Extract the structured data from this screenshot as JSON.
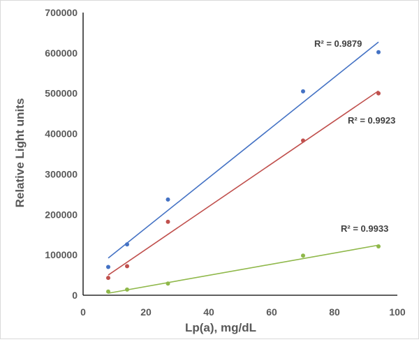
{
  "chart_data": {
    "type": "scatter",
    "title": "",
    "xlabel": "Lp(a), mg/dL",
    "ylabel": "Relative Light units",
    "xlim": [
      0,
      100
    ],
    "ylim": [
      0,
      700000
    ],
    "xticks": [
      0,
      20,
      40,
      60,
      80,
      100
    ],
    "yticks": [
      0,
      100000,
      200000,
      300000,
      400000,
      500000,
      600000,
      700000
    ],
    "grid": false,
    "legend": "none",
    "series": [
      {
        "color": "#4472c4",
        "x": [
          8,
          14,
          27,
          70,
          94
        ],
        "y": [
          70000,
          126000,
          237000,
          505000,
          602000
        ],
        "trendline": {
          "x": [
            8,
            94
          ],
          "y": [
            92000,
            627000
          ]
        },
        "r2_label": "R² = 0.9879"
      },
      {
        "color": "#c0504d",
        "x": [
          8,
          14,
          27,
          70,
          94
        ],
        "y": [
          43000,
          72000,
          182000,
          383000,
          500000
        ],
        "trendline": {
          "x": [
            8,
            94
          ],
          "y": [
            50000,
            506000
          ]
        },
        "r2_label": "R² = 0.9923"
      },
      {
        "color": "#8fb84a",
        "x": [
          8,
          14,
          27,
          70,
          94
        ],
        "y": [
          9000,
          14000,
          29000,
          98000,
          121000
        ],
        "trendline": {
          "x": [
            8,
            94
          ],
          "y": [
            5000,
            124000
          ]
        },
        "r2_label": "R² = 0.9933"
      }
    ]
  }
}
